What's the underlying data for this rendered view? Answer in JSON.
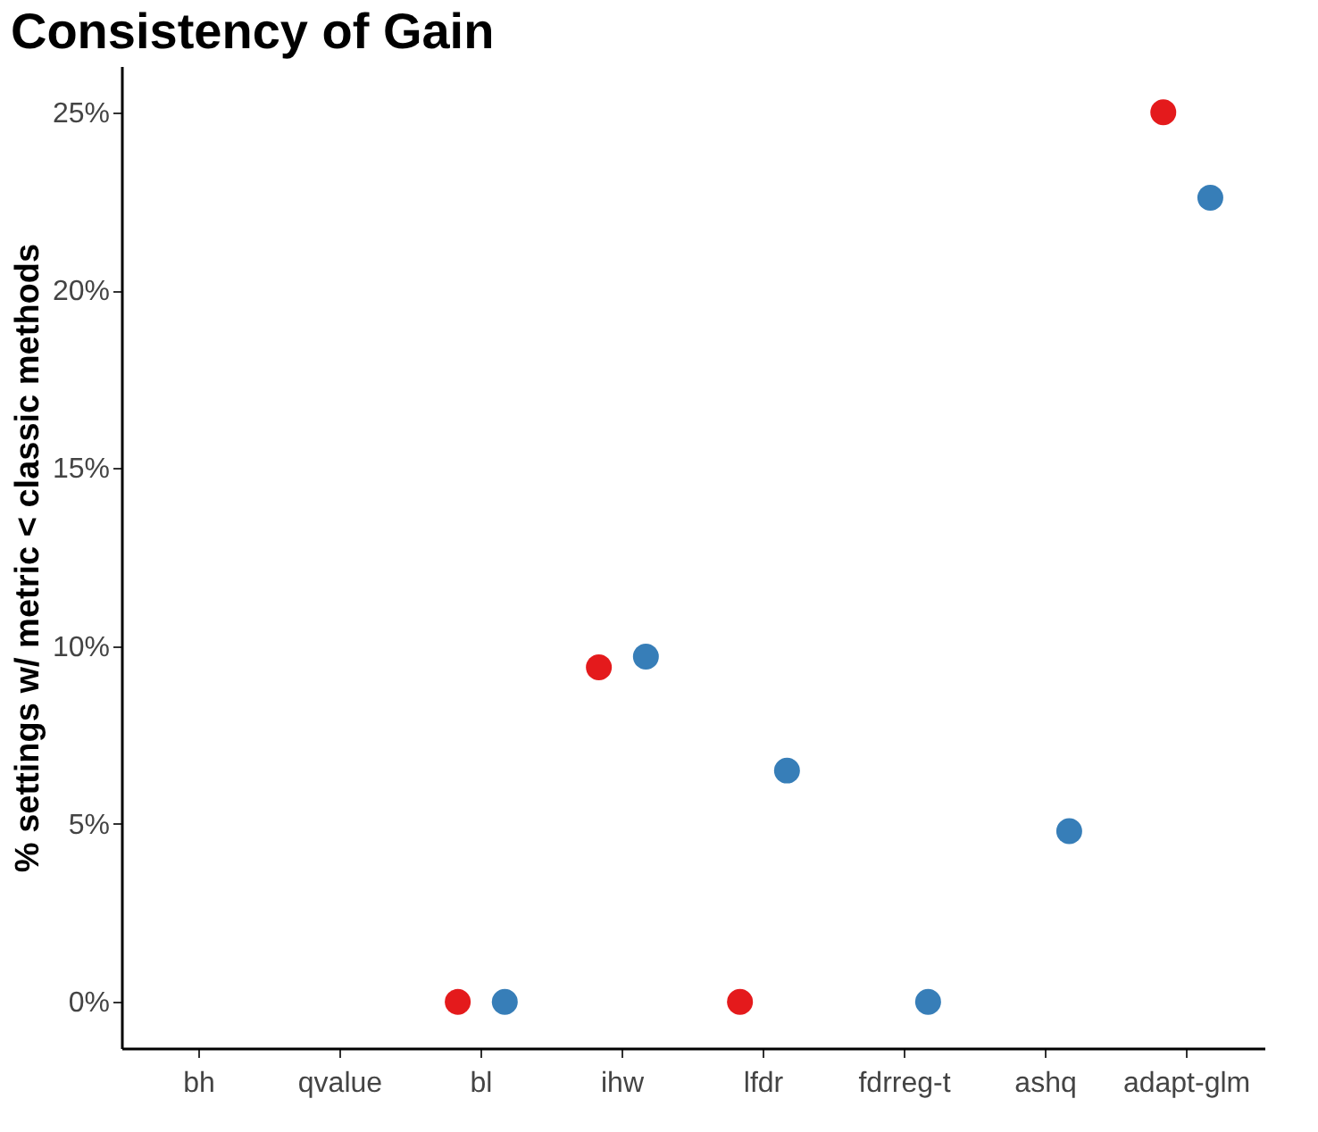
{
  "chart_data": {
    "type": "scatter",
    "title": "Consistency of Gain",
    "ylabel": "% settings w/ metric < classic methods",
    "categories": [
      "bh",
      "qvalue",
      "bl",
      "ihw",
      "lfdr",
      "fdrreg-t",
      "ashq",
      "adapt-glm"
    ],
    "series": [
      {
        "color": "#e41a1c",
        "values": [
          null,
          null,
          0,
          9.4,
          0,
          null,
          null,
          25
        ]
      },
      {
        "color": "#377eb8",
        "values": [
          null,
          null,
          0,
          9.7,
          6.5,
          0,
          4.8,
          22.6
        ]
      }
    ],
    "ylim": [
      -1.3,
      26.3
    ],
    "yticks": [
      {
        "value": 0,
        "label": "0%"
      },
      {
        "value": 5,
        "label": "5%"
      },
      {
        "value": 10,
        "label": "10%"
      },
      {
        "value": 15,
        "label": "15%"
      },
      {
        "value": 20,
        "label": "20%"
      },
      {
        "value": 25,
        "label": "25%"
      }
    ],
    "grid": false
  }
}
